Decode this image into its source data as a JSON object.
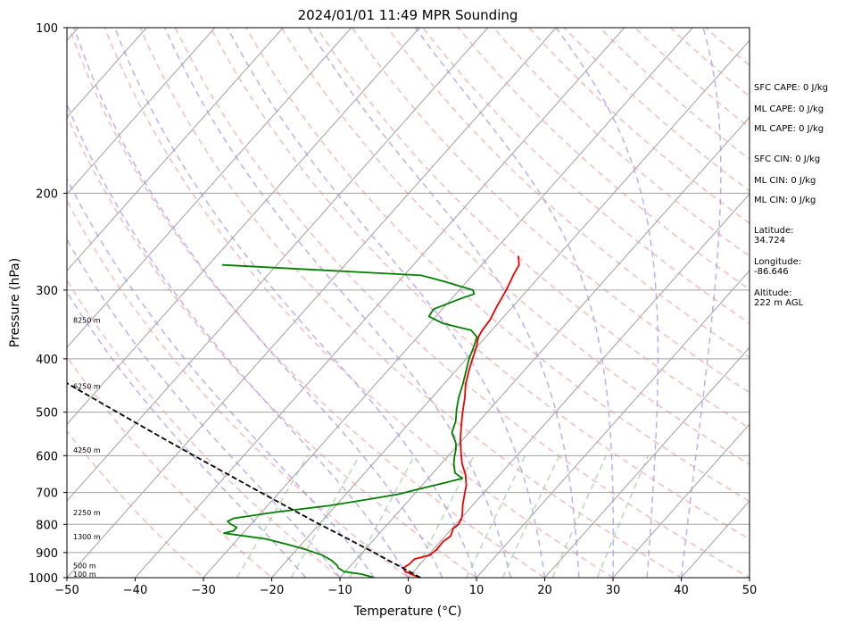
{
  "chart_data": {
    "type": "line",
    "title": "2024/01/01 11:49 MPR Sounding",
    "xlabel": "Temperature (°C)",
    "ylabel": "Pressure (hPa)",
    "xlim": [
      -50,
      50
    ],
    "ylim": [
      1000,
      100
    ],
    "y_scale": "log",
    "grid": true,
    "x_ticks": [
      -50,
      -40,
      -30,
      -20,
      -10,
      0,
      10,
      20,
      30,
      40,
      50
    ],
    "y_ticks": [
      1000,
      900,
      800,
      700,
      600,
      500,
      400,
      300,
      200,
      100
    ],
    "isotherms": [
      -120,
      -110,
      -100,
      -90,
      -80,
      -70,
      -60,
      -50,
      -40,
      -30,
      -20,
      -10,
      0,
      10,
      20,
      30,
      40,
      50
    ],
    "dry_adiabats": [
      -30,
      -20,
      -10,
      0,
      10,
      20,
      30,
      40,
      50,
      60,
      70,
      80,
      90,
      100,
      110,
      120,
      130,
      140,
      150,
      160,
      170,
      180,
      190,
      200
    ],
    "moist_adiabats": [
      -15,
      -10,
      -5,
      0,
      5,
      10,
      15,
      20,
      25,
      30,
      35,
      40
    ],
    "mixing_lines": [
      0.5,
      1,
      2,
      4,
      7,
      10,
      16,
      24
    ],
    "series": [
      {
        "kind": "temperature",
        "color": "#ee0000",
        "points": [
          [
            1000,
            1.8
          ],
          [
            990,
            0.5
          ],
          [
            975,
            -1.2
          ],
          [
            960,
            -2
          ],
          [
            945,
            -1.6
          ],
          [
            925,
            -1.5
          ],
          [
            910,
            0.2
          ],
          [
            890,
            0.5
          ],
          [
            860,
            0.4
          ],
          [
            840,
            0.8
          ],
          [
            815,
            0.2
          ],
          [
            800,
            0.4
          ],
          [
            780,
            0.1
          ],
          [
            760,
            -0.6
          ],
          [
            740,
            -1.4
          ],
          [
            720,
            -2.1
          ],
          [
            700,
            -2.8
          ],
          [
            680,
            -3.5
          ],
          [
            660,
            -4.5
          ],
          [
            650,
            -5.0
          ],
          [
            620,
            -7.0
          ],
          [
            590,
            -8.7
          ],
          [
            560,
            -10.4
          ],
          [
            530,
            -12
          ],
          [
            500,
            -13.6
          ],
          [
            470,
            -15.2
          ],
          [
            445,
            -16.8
          ],
          [
            420,
            -18.1
          ],
          [
            400,
            -19.1
          ],
          [
            380,
            -20.1
          ],
          [
            365,
            -21.1
          ],
          [
            355,
            -21.4
          ],
          [
            340,
            -21.6
          ],
          [
            320,
            -22.4
          ],
          [
            300,
            -23.1
          ],
          [
            280,
            -24.1
          ],
          [
            270,
            -24.5
          ],
          [
            260,
            -25.8
          ]
        ]
      },
      {
        "kind": "dewpoint",
        "color": "#007f00",
        "points": [
          [
            1000,
            -5
          ],
          [
            985,
            -7.3
          ],
          [
            975,
            -10.2
          ],
          [
            960,
            -11.5
          ],
          [
            950,
            -12.0
          ],
          [
            930,
            -13.5
          ],
          [
            910,
            -15.5
          ],
          [
            890,
            -18.5
          ],
          [
            870,
            -22
          ],
          [
            850,
            -26.0
          ],
          [
            835,
            -31
          ],
          [
            830,
            -32.8
          ],
          [
            822,
            -31.7
          ],
          [
            810,
            -31.7
          ],
          [
            798,
            -33.1
          ],
          [
            790,
            -33.8
          ],
          [
            780,
            -33.3
          ],
          [
            760,
            -28
          ],
          [
            740,
            -21
          ],
          [
            720,
            -16
          ],
          [
            705,
            -12.3
          ],
          [
            690,
            -10
          ],
          [
            672,
            -7.0
          ],
          [
            660,
            -5
          ],
          [
            645,
            -6.8
          ],
          [
            620,
            -8.2
          ],
          [
            600,
            -9.1
          ],
          [
            585,
            -9.7
          ],
          [
            570,
            -10.5
          ],
          [
            545,
            -12.5
          ],
          [
            520,
            -13.4
          ],
          [
            495,
            -14.8
          ],
          [
            470,
            -16.1
          ],
          [
            445,
            -17.2
          ],
          [
            420,
            -18.5
          ],
          [
            400,
            -19.6
          ],
          [
            380,
            -20.5
          ],
          [
            365,
            -21.3
          ],
          [
            355,
            -23
          ],
          [
            345,
            -28
          ],
          [
            335,
            -31
          ],
          [
            325,
            -31.3
          ],
          [
            310,
            -28.5
          ],
          [
            305,
            -27.3
          ],
          [
            300,
            -28
          ],
          [
            290,
            -33
          ],
          [
            282,
            -37.5
          ],
          [
            270,
            -68
          ]
        ]
      },
      {
        "kind": "parcel",
        "color": "#000000",
        "dashed": true,
        "points": [
          [
            1000,
            1.8
          ],
          [
            975,
            -0.6
          ],
          [
            950,
            -3.1
          ],
          [
            925,
            -5.7
          ],
          [
            900,
            -8.3
          ],
          [
            850,
            -13.9
          ],
          [
            800,
            -19.9
          ],
          [
            750,
            -26.1
          ],
          [
            700,
            -32.7
          ],
          [
            650,
            -39.7
          ],
          [
            600,
            -47.3
          ],
          [
            550,
            -55.4
          ],
          [
            500,
            -64.2
          ],
          [
            450,
            -73.9
          ],
          [
            400,
            -84.6
          ],
          [
            350,
            -96.5
          ],
          [
            300,
            -110.2
          ]
        ]
      }
    ],
    "height_labels": [
      {
        "pressure": 1000,
        "text": "100 m"
      },
      {
        "pressure": 965,
        "text": "500 m"
      },
      {
        "pressure": 855,
        "text": "1300 m"
      },
      {
        "pressure": 772,
        "text": "2250 m"
      },
      {
        "pressure": 595,
        "text": "4250 m"
      },
      {
        "pressure": 455,
        "text": "6250 m"
      },
      {
        "pressure": 345,
        "text": "8250 m"
      }
    ]
  },
  "side_panel": {
    "sfc_cape": "SFC CAPE: 0 J/kg",
    "ml_cape_1": "ML CAPE: 0 J/kg",
    "ml_cape_2": "ML CAPE: 0 J/kg",
    "sfc_cin": "SFC CIN: 0 J/kg",
    "ml_cin_1": "ML CIN: 0 J/kg",
    "ml_cin_2": "ML CIN: 0 J/kg",
    "latitude": "Latitude:\n34.724",
    "longitude": "Longitude:\n-86.646",
    "altitude": "Altitude:\n222 m AGL"
  },
  "colors": {
    "isotherm": "#a0a0a0",
    "dry_adiabat": "#f4a0a0",
    "moist_adiabat": "#9e8ff0",
    "mixing_ratio": "#99cc99",
    "grid": "#a0a0a0"
  }
}
